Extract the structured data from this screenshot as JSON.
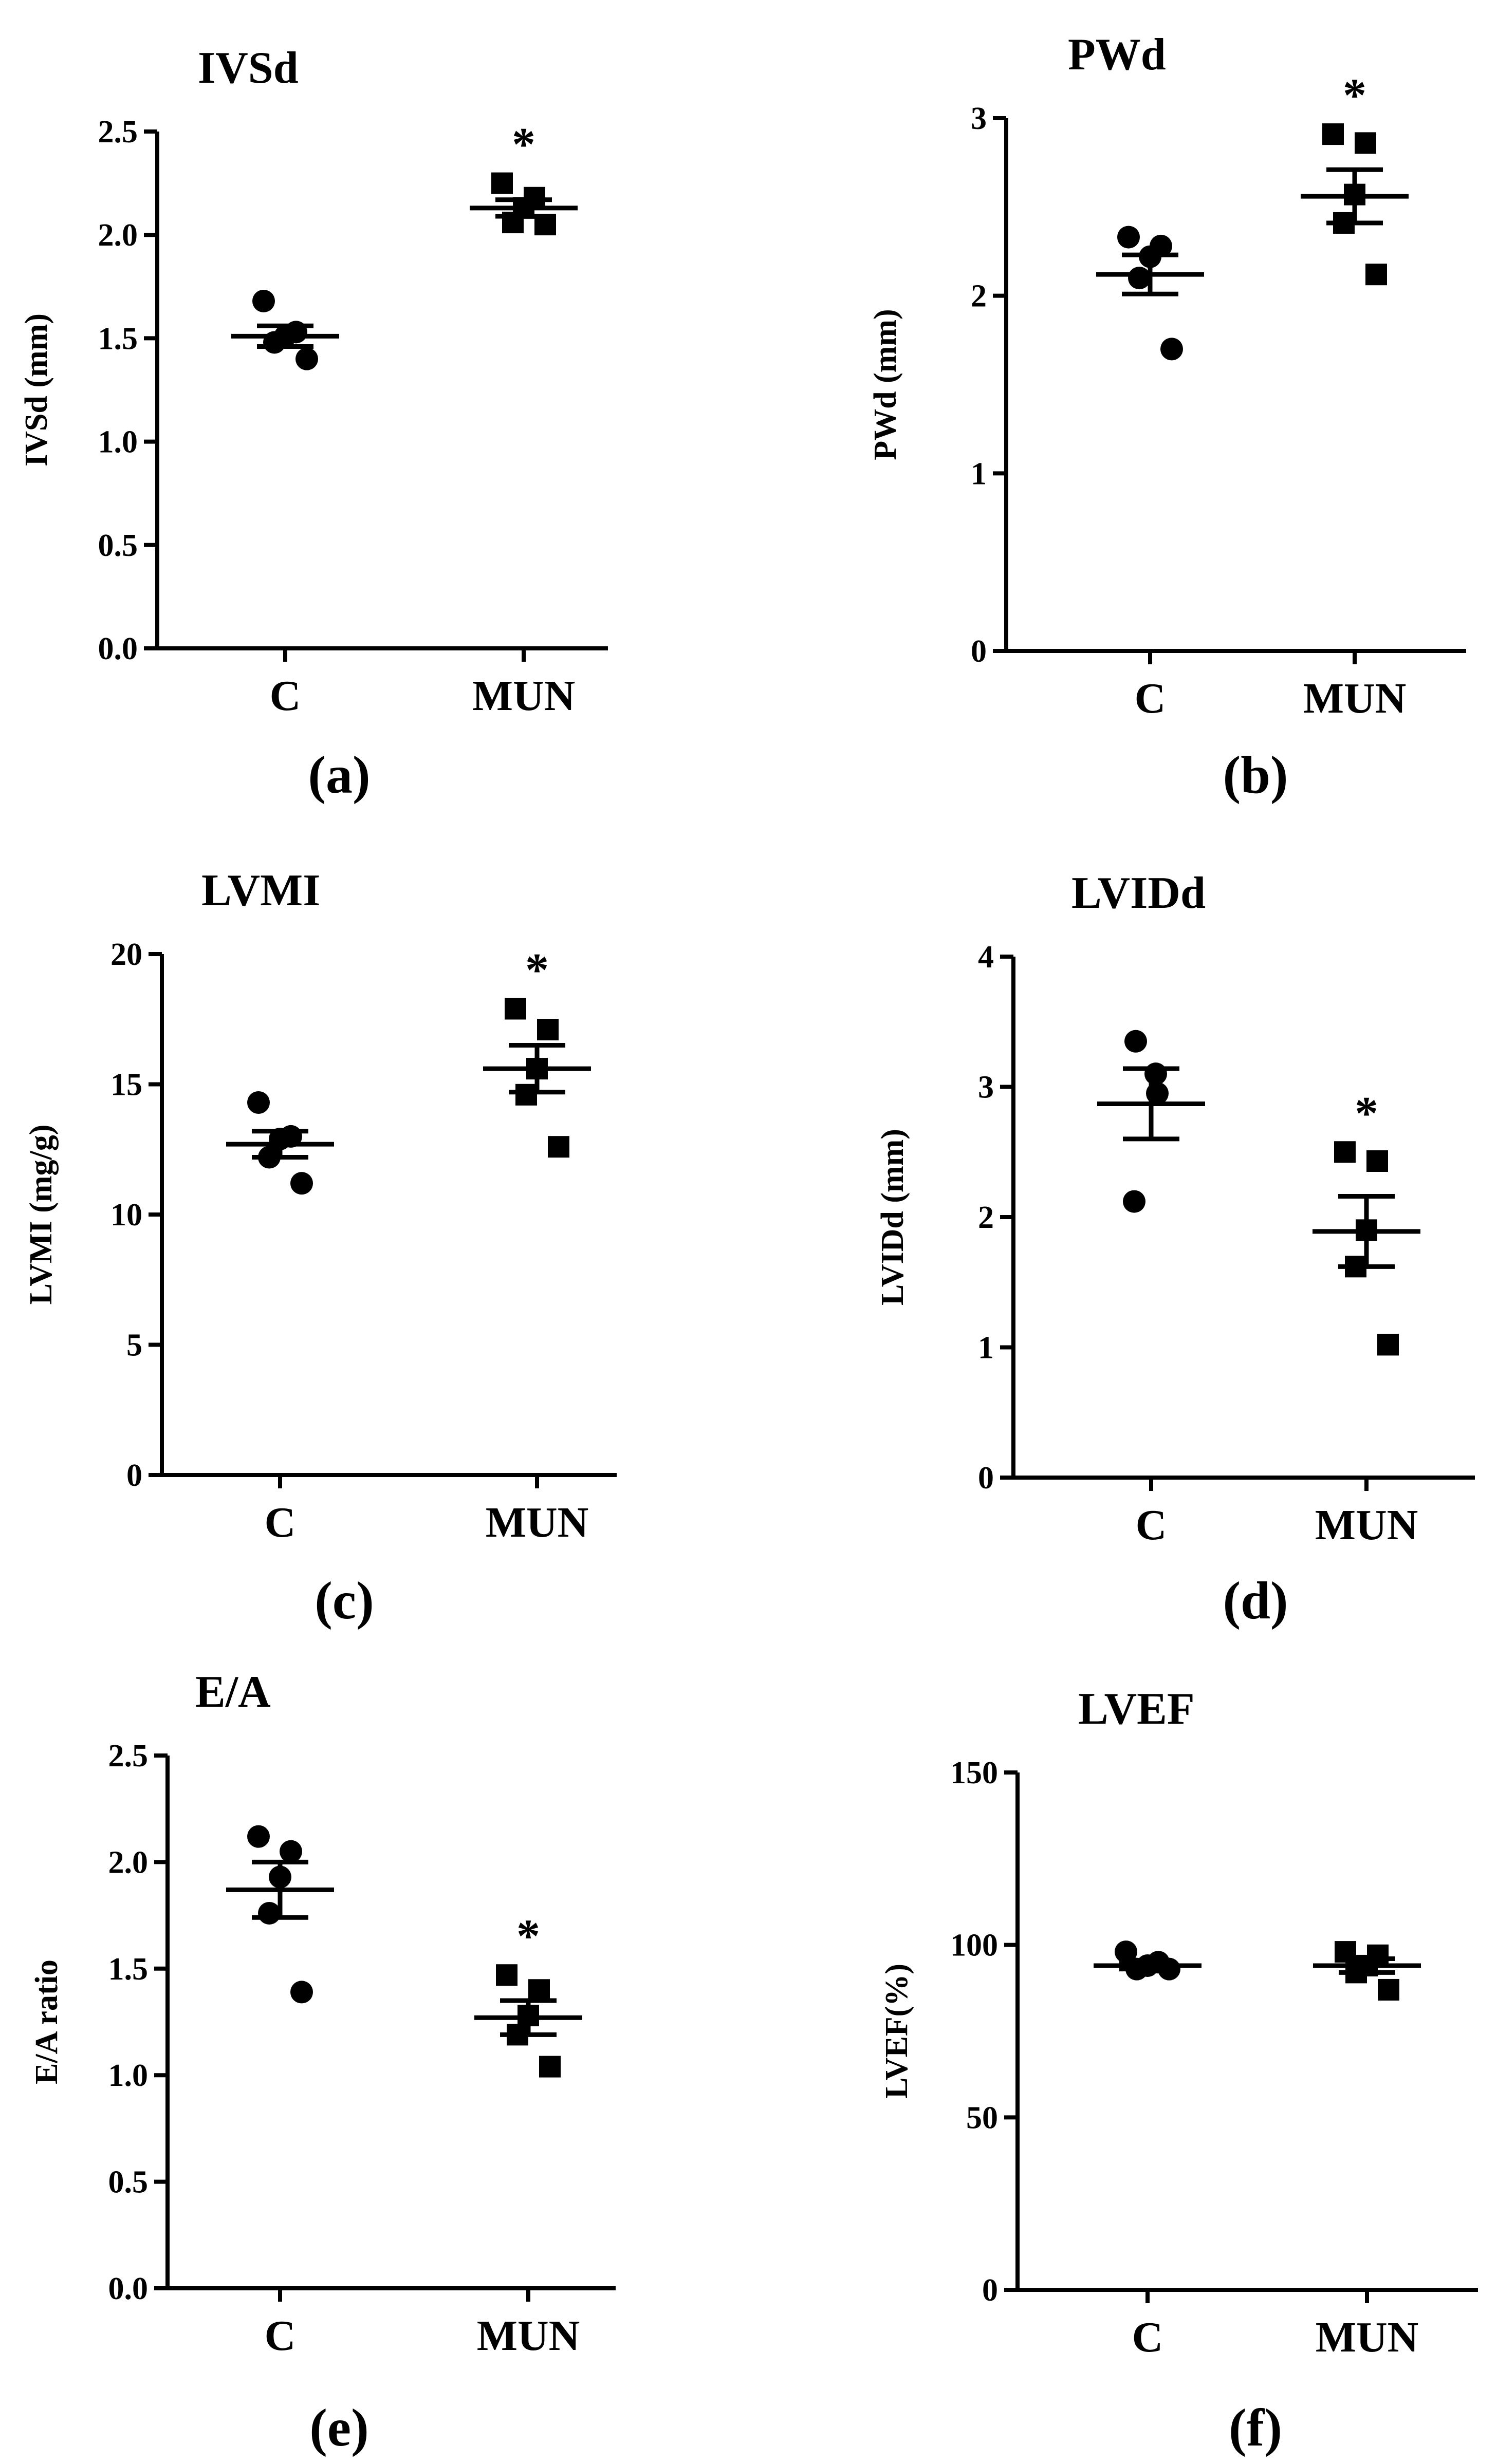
{
  "chart_data": [
    {
      "type": "scatter",
      "panel_label": "(a)",
      "title": "IVSd",
      "ylabel": "IVSd (mm)",
      "categories": [
        "C",
        "MUN"
      ],
      "ylim": [
        0,
        2.5
      ],
      "yticks": [
        "0.0",
        "0.5",
        "1.0",
        "1.5",
        "2.0",
        "2.5"
      ],
      "grid": false,
      "significance": {
        "MUN": "*"
      },
      "series": [
        {
          "group": "C",
          "marker": "circle",
          "points": [
            1.68,
            1.53,
            1.51,
            1.48,
            1.4
          ],
          "mean": 1.51,
          "sem": 0.05
        },
        {
          "group": "MUN",
          "marker": "square",
          "points": [
            2.25,
            2.18,
            2.13,
            2.06,
            2.05
          ],
          "mean": 2.13,
          "sem": 0.04
        }
      ]
    },
    {
      "type": "scatter",
      "panel_label": "(b)",
      "title": "PWd",
      "ylabel": "PWd (mm)",
      "categories": [
        "C",
        "MUN"
      ],
      "ylim": [
        0,
        3
      ],
      "yticks": [
        "0",
        "1",
        "2",
        "3"
      ],
      "grid": false,
      "significance": {
        "MUN": "*"
      },
      "series": [
        {
          "group": "C",
          "marker": "circle",
          "points": [
            2.33,
            2.28,
            2.22,
            2.1,
            1.7
          ],
          "mean": 2.12,
          "sem": 0.11
        },
        {
          "group": "MUN",
          "marker": "square",
          "points": [
            2.91,
            2.86,
            2.57,
            2.41,
            2.12
          ],
          "mean": 2.56,
          "sem": 0.15
        }
      ]
    },
    {
      "type": "scatter",
      "panel_label": "(c)",
      "title": "LVMI",
      "ylabel": "LVMI (mg/g)",
      "categories": [
        "C",
        "MUN"
      ],
      "ylim": [
        0,
        20
      ],
      "yticks": [
        "0",
        "5",
        "10",
        "15",
        "20"
      ],
      "grid": false,
      "significance": {
        "MUN": "*"
      },
      "series": [
        {
          "group": "C",
          "marker": "circle",
          "points": [
            14.3,
            13.0,
            12.9,
            12.2,
            11.2
          ],
          "mean": 12.7,
          "sem": 0.5
        },
        {
          "group": "MUN",
          "marker": "square",
          "points": [
            17.9,
            17.1,
            15.6,
            14.6,
            12.6
          ],
          "mean": 15.6,
          "sem": 0.9
        }
      ]
    },
    {
      "type": "scatter",
      "panel_label": "(d)",
      "title": "LVIDd",
      "ylabel": "LVIDd (mm)",
      "categories": [
        "C",
        "MUN"
      ],
      "ylim": [
        0,
        4
      ],
      "yticks": [
        "0",
        "1",
        "2",
        "3",
        "4"
      ],
      "grid": false,
      "significance": {
        "MUN": "*"
      },
      "series": [
        {
          "group": "C",
          "marker": "circle",
          "points": [
            3.35,
            3.1,
            2.95,
            2.12
          ],
          "mean": 2.87,
          "sem": 0.27
        },
        {
          "group": "MUN",
          "marker": "square",
          "points": [
            2.5,
            2.43,
            1.9,
            1.62,
            1.02
          ],
          "mean": 1.89,
          "sem": 0.27
        }
      ]
    },
    {
      "type": "scatter",
      "panel_label": "(e)",
      "title": "E/A",
      "ylabel": "E/A ratio",
      "categories": [
        "C",
        "MUN"
      ],
      "ylim": [
        0,
        2.5
      ],
      "yticks": [
        "0.0",
        "0.5",
        "1.0",
        "1.5",
        "2.0",
        "2.5"
      ],
      "grid": false,
      "significance": {
        "MUN": "*"
      },
      "series": [
        {
          "group": "C",
          "marker": "circle",
          "points": [
            2.12,
            2.05,
            1.93,
            1.76,
            1.39
          ],
          "mean": 1.87,
          "sem": 0.13
        },
        {
          "group": "MUN",
          "marker": "square",
          "points": [
            1.47,
            1.4,
            1.28,
            1.19,
            1.04
          ],
          "mean": 1.27,
          "sem": 0.08
        }
      ]
    },
    {
      "type": "scatter",
      "panel_label": "(f)",
      "title": "LVEF",
      "ylabel": "LVEF(%)",
      "categories": [
        "C",
        "MUN"
      ],
      "ylim": [
        0,
        150
      ],
      "yticks": [
        "0",
        "50",
        "100",
        "150"
      ],
      "grid": false,
      "significance": {},
      "series": [
        {
          "group": "C",
          "marker": "circle",
          "points": [
            98,
            95,
            94,
            93,
            93
          ],
          "mean": 94,
          "sem": 1
        },
        {
          "group": "MUN",
          "marker": "square",
          "points": [
            98,
            97,
            94,
            92,
            87
          ],
          "mean": 94,
          "sem": 2
        }
      ]
    }
  ]
}
